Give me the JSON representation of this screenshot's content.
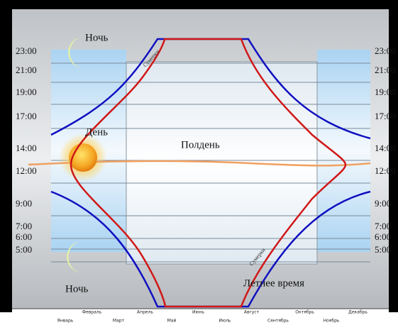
{
  "labels": {
    "night_top": "Ночь",
    "day": "День",
    "noon": "Полдень",
    "night_bottom": "Ночь",
    "summer_time": "Летнее время",
    "twilight": "Сумерки"
  },
  "time_ticks": [
    "23:00",
    "21:00",
    "19:00",
    "17:00",
    "14:00",
    "12:00",
    "9:00",
    "7:00",
    "6:00",
    "5:00"
  ],
  "months": [
    "Январь",
    "Февраль",
    "Март",
    "Апрель",
    "Май",
    "Июнь",
    "Июль",
    "Август",
    "Сентябрь",
    "Октябрь",
    "Ноябрь",
    "Декабрь"
  ]
}
